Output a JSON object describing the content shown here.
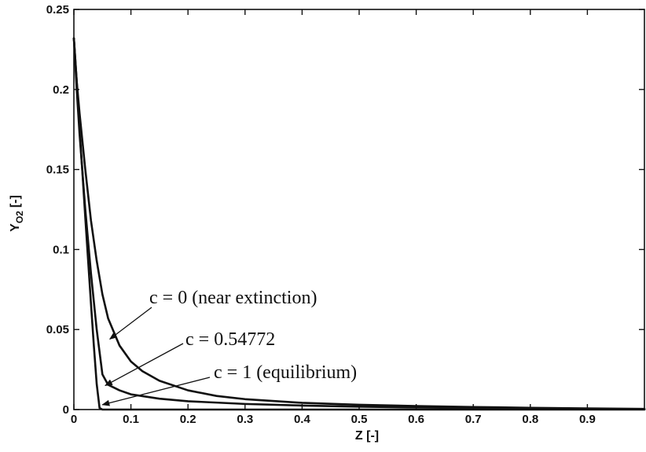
{
  "chart_data": {
    "type": "line",
    "title": "",
    "xlabel": "Z [-]",
    "ylabel_main": "Y",
    "ylabel_sub": "O2",
    "ylabel_unit": "[-]",
    "xlim": [
      0,
      1
    ],
    "ylim": [
      0,
      0.25
    ],
    "xticks": [
      0,
      0.1,
      0.2,
      0.3,
      0.4,
      0.5,
      0.6,
      0.7,
      0.8,
      0.9
    ],
    "xtick_labels": [
      "0",
      "0.1",
      "0.2",
      "0.3",
      "0.4",
      "0.5",
      "0.6",
      "0.7",
      "0.8",
      "0.9"
    ],
    "yticks": [
      0,
      0.05,
      0.1,
      0.15,
      0.2,
      0.25
    ],
    "ytick_labels": [
      "0",
      "0.05",
      "0.1",
      "0.15",
      "0.2",
      "0.25"
    ],
    "grid": false,
    "series": [
      {
        "name": "c = 0 (near extinction)",
        "x": [
          0,
          0.005,
          0.01,
          0.02,
          0.03,
          0.04,
          0.05,
          0.06,
          0.08,
          0.1,
          0.12,
          0.15,
          0.2,
          0.25,
          0.3,
          0.4,
          0.5,
          0.6,
          0.7,
          0.8,
          0.9,
          1.0
        ],
        "y": [
          0.232,
          0.205,
          0.185,
          0.15,
          0.118,
          0.093,
          0.072,
          0.057,
          0.04,
          0.03,
          0.024,
          0.018,
          0.012,
          0.0085,
          0.0065,
          0.0042,
          0.003,
          0.0022,
          0.0016,
          0.0011,
          0.0007,
          0.0004
        ]
      },
      {
        "name": "c = 0.54772",
        "x": [
          0,
          0.005,
          0.01,
          0.02,
          0.03,
          0.04,
          0.05,
          0.06,
          0.08,
          0.1,
          0.15,
          0.2,
          0.3,
          0.4,
          0.5,
          0.6,
          0.7,
          0.8,
          0.9,
          1.0
        ],
        "y": [
          0.232,
          0.2,
          0.172,
          0.125,
          0.085,
          0.05,
          0.022,
          0.0155,
          0.012,
          0.0095,
          0.0068,
          0.0052,
          0.0035,
          0.0025,
          0.0018,
          0.0013,
          0.0009,
          0.0006,
          0.0004,
          0.0002
        ]
      },
      {
        "name": "c = 1 (equilibrium)",
        "x": [
          0,
          0.005,
          0.01,
          0.015,
          0.02,
          0.025,
          0.03,
          0.035,
          0.04,
          0.045,
          0.05,
          0.1,
          0.3,
          0.6,
          1.0
        ],
        "y": [
          0.232,
          0.205,
          0.175,
          0.148,
          0.12,
          0.093,
          0.066,
          0.04,
          0.016,
          0.001,
          0,
          0,
          0,
          0,
          0
        ]
      }
    ],
    "annotations": [
      {
        "text": "c = 0 (near extinction)",
        "series": 0,
        "arrow_tip": [
          0.063,
          0.044
        ]
      },
      {
        "text": "c = 0.54772",
        "series": 1,
        "arrow_tip": [
          0.055,
          0.015
        ]
      },
      {
        "text": "c = 1 (equilibrium)",
        "series": 2,
        "arrow_tip": [
          0.05,
          0.003
        ]
      }
    ]
  }
}
